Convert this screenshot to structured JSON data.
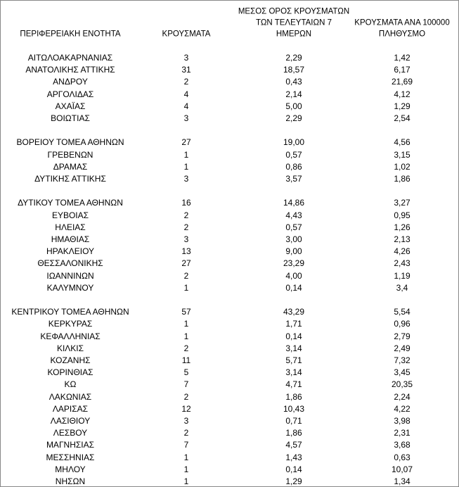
{
  "table": {
    "header": [
      [
        "ΠΕΡΙΦΕΡΕΙΑΚΗ ΕΝΟΤΗΤΑ"
      ],
      [
        "ΚΡΟΥΣΜΑΤΑ"
      ],
      [
        "ΜΕΣΟΣ ΟΡΟΣ ΚΡΟΥΣΜΑΤΩΝ",
        "ΤΩΝ ΤΕΛΕΥΤΑΙΩΝ 7",
        "ΗΜΕΡΩΝ"
      ],
      [
        "ΚΡΟΥΣΜΑΤΑ ΑΝΑ 100000",
        "ΠΛΗΘΥΣΜΟ"
      ]
    ],
    "groups": [
      [
        [
          "ΑΙΤΩΛΟΑΚΑΡΝΑΝΙΑΣ",
          "3",
          "2,29",
          "1,42"
        ],
        [
          "ΑΝΑΤΟΛΙΚΗΣ ΑΤΤΙΚΗΣ",
          "31",
          "18,57",
          "6,17"
        ],
        [
          "ΑΝΔΡΟΥ",
          "2",
          "0,43",
          "21,69"
        ],
        [
          "ΑΡΓΟΛΙΔΑΣ",
          "4",
          "2,14",
          "4,12"
        ],
        [
          "ΑΧΑΪΑΣ",
          "4",
          "5,00",
          "1,29"
        ],
        [
          "ΒΟΙΩΤΙΑΣ",
          "3",
          "2,29",
          "2,54"
        ]
      ],
      [
        [
          "ΒΟΡΕΙΟΥ ΤΟΜΕΑ ΑΘΗΝΩΝ",
          "27",
          "19,00",
          "4,56"
        ],
        [
          "ΓΡΕΒΕΝΩΝ",
          "1",
          "0,57",
          "3,15"
        ],
        [
          "ΔΡΑΜΑΣ",
          "1",
          "0,86",
          "1,02"
        ],
        [
          "ΔΥΤΙΚΗΣ ΑΤΤΙΚΗΣ",
          "3",
          "3,57",
          "1,86"
        ]
      ],
      [
        [
          "ΔΥΤΙΚΟΥ ΤΟΜΕΑ ΑΘΗΝΩΝ",
          "16",
          "14,86",
          "3,27"
        ],
        [
          "ΕΥΒΟΙΑΣ",
          "2",
          "4,43",
          "0,95"
        ],
        [
          "ΗΛΕΙΑΣ",
          "2",
          "0,57",
          "1,26"
        ],
        [
          "ΗΜΑΘΙΑΣ",
          "3",
          "3,00",
          "2,13"
        ],
        [
          "ΗΡΑΚΛΕΙΟΥ",
          "13",
          "9,00",
          "4,26"
        ],
        [
          "ΘΕΣΣΑΛΟΝΙΚΗΣ",
          "27",
          "23,29",
          "2,43"
        ],
        [
          "ΙΩΑΝΝΙΝΩΝ",
          "2",
          "4,00",
          "1,19"
        ],
        [
          "ΚΑΛΥΜΝΟΥ",
          "1",
          "0,14",
          "3,4"
        ]
      ],
      [
        [
          "ΚΕΝΤΡΙΚΟΥ ΤΟΜΕΑ ΑΘΗΝΩΝ",
          "57",
          "43,29",
          "5,54"
        ],
        [
          "ΚΕΡΚΥΡΑΣ",
          "1",
          "1,71",
          "0,96"
        ],
        [
          "ΚΕΦΑΛΛΗΝΙΑΣ",
          "1",
          "0,14",
          "2,79"
        ],
        [
          "ΚΙΛΚΙΣ",
          "2",
          "3,14",
          "2,49"
        ],
        [
          "ΚΟΖΑΝΗΣ",
          "11",
          "5,71",
          "7,32"
        ],
        [
          "ΚΟΡΙΝΘΙΑΣ",
          "5",
          "3,14",
          "3,45"
        ],
        [
          "ΚΩ",
          "7",
          "4,71",
          "20,35"
        ],
        [
          "ΛΑΚΩΝΙΑΣ",
          "2",
          "1,86",
          "2,24"
        ],
        [
          "ΛΑΡΙΣΑΣ",
          "12",
          "10,43",
          "4,22"
        ],
        [
          "ΛΑΣΙΘΙΟΥ",
          "3",
          "0,71",
          "3,98"
        ],
        [
          "ΛΕΣΒΟΥ",
          "2",
          "1,86",
          "2,31"
        ],
        [
          "ΜΑΓΝΗΣΙΑΣ",
          "7",
          "4,57",
          "3,68"
        ],
        [
          "ΜΕΣΣΗΝΙΑΣ",
          "1",
          "1,43",
          "0,63"
        ],
        [
          "ΜΗΛΟΥ",
          "1",
          "0,14",
          "10,07"
        ],
        [
          "ΝΗΣΩΝ",
          "1",
          "1,29",
          "1,34"
        ]
      ]
    ]
  }
}
